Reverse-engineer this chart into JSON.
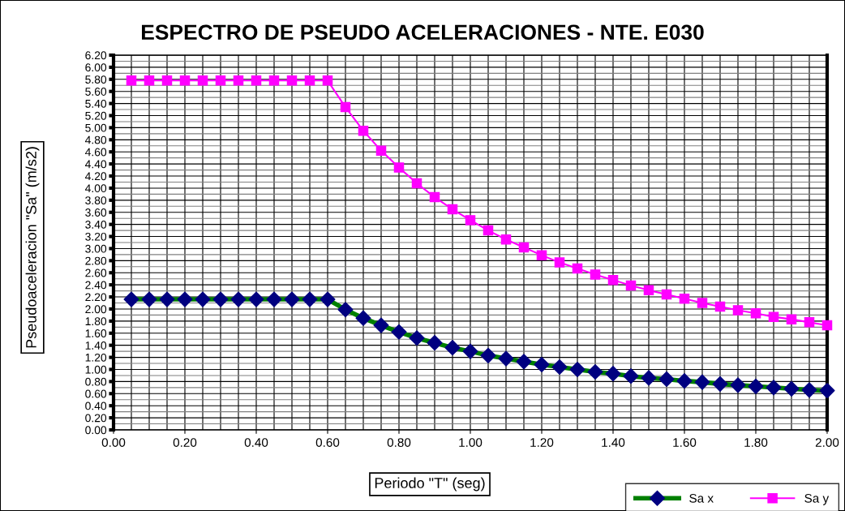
{
  "chart_data": {
    "type": "line",
    "title": "ESPECTRO DE PSEUDO ACELERACIONES - NTE. E030",
    "xlabel": "Periodo \"T\" (seg)",
    "ylabel": "Pseudoaceleracion \"Sa\" (m/s2)",
    "x": [
      0.05,
      0.1,
      0.15,
      0.2,
      0.25,
      0.3,
      0.35,
      0.4,
      0.45,
      0.5,
      0.55,
      0.6,
      0.65,
      0.7,
      0.75,
      0.8,
      0.85,
      0.9,
      0.95,
      1.0,
      1.05,
      1.1,
      1.15,
      1.2,
      1.25,
      1.3,
      1.35,
      1.4,
      1.45,
      1.5,
      1.55,
      1.6,
      1.65,
      1.7,
      1.75,
      1.8,
      1.85,
      1.9,
      1.95,
      2.0
    ],
    "series": [
      {
        "name": "Sa x",
        "color": "#008000",
        "colors": [
          "#000080",
          "#000080",
          "#000080",
          "#000080",
          "#000080",
          "#000080",
          "#000080",
          "#000080",
          "#000080",
          "#000080",
          "#000080",
          "#000080",
          "#000080",
          "#000080",
          "#000080",
          "#000080",
          "#000080",
          "#000080",
          "#000080",
          "#000080",
          "#000080",
          "#000080",
          "#000080",
          "#000080",
          "#000080",
          "#000080",
          "#000080",
          "#000080",
          "#000080",
          "#000080",
          "#000080",
          "#000080",
          "#000080",
          "#000080",
          "#000080",
          "#000080",
          "#000080",
          "#000080",
          "#000080",
          "#000080"
        ],
        "marker": "diamond",
        "values": [
          2.16,
          2.16,
          2.16,
          2.16,
          2.16,
          2.16,
          2.16,
          2.16,
          2.16,
          2.16,
          2.16,
          2.16,
          1.99,
          1.85,
          1.73,
          1.62,
          1.52,
          1.44,
          1.36,
          1.3,
          1.23,
          1.18,
          1.13,
          1.08,
          1.04,
          1.0,
          0.96,
          0.93,
          0.89,
          0.86,
          0.84,
          0.81,
          0.79,
          0.76,
          0.74,
          0.72,
          0.7,
          0.68,
          0.66,
          0.65
        ]
      },
      {
        "name": "Sa y",
        "color": "#ff00ff",
        "marker": "square",
        "values": [
          5.78,
          5.78,
          5.78,
          5.78,
          5.78,
          5.78,
          5.78,
          5.78,
          5.78,
          5.78,
          5.78,
          5.78,
          5.34,
          4.95,
          4.62,
          4.34,
          4.08,
          3.85,
          3.65,
          3.47,
          3.3,
          3.15,
          3.02,
          2.89,
          2.77,
          2.67,
          2.57,
          2.48,
          2.39,
          2.31,
          2.24,
          2.17,
          2.1,
          2.04,
          1.98,
          1.93,
          1.87,
          1.83,
          1.78,
          1.73
        ]
      }
    ],
    "xlim": [
      0,
      2
    ],
    "xticks": [
      {
        "value": 0,
        "label": "0.00"
      },
      {
        "value": 0.2,
        "label": "0.20"
      },
      {
        "value": 0.4,
        "label": "0.40"
      },
      {
        "value": 0.6,
        "label": "0.60"
      },
      {
        "value": 0.8,
        "label": "0.80"
      },
      {
        "value": 1.0,
        "label": "1.00"
      },
      {
        "value": 1.2,
        "label": "1.20"
      },
      {
        "value": 1.4,
        "label": "1.40"
      },
      {
        "value": 1.6,
        "label": "1.60"
      },
      {
        "value": 1.8,
        "label": "1.80"
      },
      {
        "value": 2.0,
        "label": "2.00"
      }
    ],
    "ylim": [
      0,
      6.2
    ],
    "yticks": [
      {
        "value": 0,
        "label": "0.00"
      },
      {
        "value": 0.2,
        "label": "0.20"
      },
      {
        "value": 0.4,
        "label": "0.40"
      },
      {
        "value": 0.6,
        "label": "0.60"
      },
      {
        "value": 0.8,
        "label": "0.80"
      },
      {
        "value": 1.0,
        "label": "1.00"
      },
      {
        "value": 1.2,
        "label": "1.20"
      },
      {
        "value": 1.4,
        "label": "1.40"
      },
      {
        "value": 1.6,
        "label": "1.60"
      },
      {
        "value": 1.8,
        "label": "1.80"
      },
      {
        "value": 2.0,
        "label": "2.00"
      },
      {
        "value": 2.2,
        "label": "2.20"
      },
      {
        "value": 2.4,
        "label": "2.40"
      },
      {
        "value": 2.6,
        "label": "2.60"
      },
      {
        "value": 2.8,
        "label": "2.80"
      },
      {
        "value": 3.0,
        "label": "3.00"
      },
      {
        "value": 3.2,
        "label": "3.20"
      },
      {
        "value": 3.4,
        "label": "3.40"
      },
      {
        "value": 3.6,
        "label": "3.60"
      },
      {
        "value": 3.8,
        "label": "3.80"
      },
      {
        "value": 4.0,
        "label": "4.00"
      },
      {
        "value": 4.2,
        "label": "4.20"
      },
      {
        "value": 4.4,
        "label": "4.40"
      },
      {
        "value": 4.6,
        "label": "4.60"
      },
      {
        "value": 4.8,
        "label": "4.80"
      },
      {
        "value": 5.0,
        "label": "5.00"
      },
      {
        "value": 5.2,
        "label": "5.20"
      },
      {
        "value": 5.4,
        "label": "5.40"
      },
      {
        "value": 5.6,
        "label": "5.60"
      },
      {
        "value": 5.8,
        "label": "5.80"
      },
      {
        "value": 6.0,
        "label": "6.00"
      },
      {
        "value": 6.2,
        "label": "6.20"
      }
    ],
    "grid": true,
    "legend": "bottom right",
    "line_style": "solid"
  }
}
